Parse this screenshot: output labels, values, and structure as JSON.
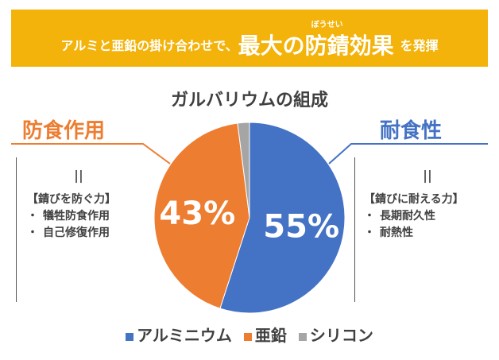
{
  "banner": {
    "text_pre": "アルミと亜鉛の掛け合わせで、",
    "text_main_1": "最大の",
    "text_main_ruby_base": "防錆",
    "text_main_ruby": "ぼうせい",
    "text_main_2": "効果",
    "text_post": "を発揮",
    "color": "#f3b30b"
  },
  "left_panel": {
    "heading": "防食作用",
    "equals": "||",
    "title": "【錆びを防ぐ力】",
    "items": [
      "犠牲防食作用",
      "自己修復作用"
    ]
  },
  "right_panel": {
    "heading": "耐食性",
    "equals": "||",
    "title": "【錆びに耐える力】",
    "items": [
      "長期耐久性",
      "耐熱性"
    ]
  },
  "chart_data": {
    "type": "pie",
    "title": "ガルバリウムの組成",
    "legend_position": "bottom",
    "slices": [
      {
        "name": "アルミニウム",
        "value": 55,
        "label": "55%",
        "color": "#4472c4"
      },
      {
        "name": "亜鉛",
        "value": 43,
        "label": "43%",
        "color": "#ed7d31"
      },
      {
        "name": "シリコン",
        "value": 2,
        "label": "",
        "color": "#a5a5a5"
      }
    ]
  }
}
